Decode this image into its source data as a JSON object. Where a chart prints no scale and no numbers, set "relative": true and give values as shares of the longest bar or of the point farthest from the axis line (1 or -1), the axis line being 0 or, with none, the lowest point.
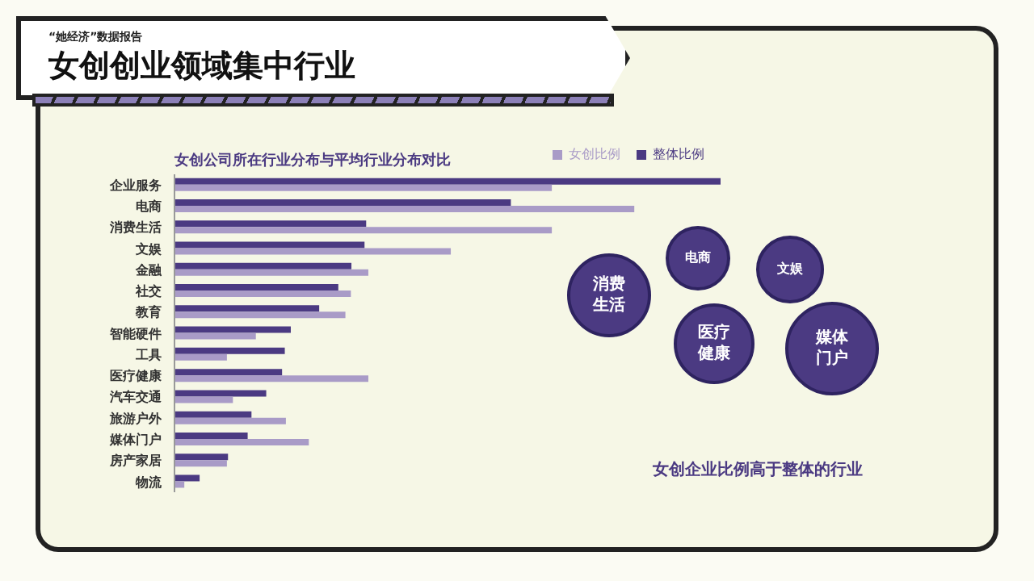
{
  "chart_data": {
    "type": "bar",
    "orientation": "horizontal",
    "relative": true,
    "title": "女创创业领域集中行业",
    "subtitle": "女创公司所在行业分布与平均行业分布对比",
    "categories": [
      "企业服务",
      "电商",
      "消费生活",
      "文娱",
      "金融",
      "社交",
      "教育",
      "智能硬件",
      "工具",
      "医疗健康",
      "汽车交通",
      "旅游户外",
      "媒体门户",
      "房产家居",
      "物流"
    ],
    "series": [
      {
        "name": "整体比例",
        "color": "#4b3a82",
        "values": [
          1,
          0.616,
          0.351,
          0.348,
          0.324,
          0.3,
          0.265,
          0.213,
          0.202,
          0.197,
          0.168,
          0.141,
          0.134,
          0.098,
          0.046
        ]
      },
      {
        "name": "女创比例",
        "color": "#a99bc7",
        "values": [
          0.691,
          0.842,
          0.691,
          0.506,
          0.355,
          0.323,
          0.313,
          0.149,
          0.096,
          0.355,
          0.107,
          0.204,
          0.246,
          0.096,
          0.018
        ]
      }
    ],
    "legend": "top right",
    "annotations": [
      "“她经济”数据报告",
      "消费生活",
      "电商",
      "文娱",
      "医疗健康",
      "媒体门户",
      "女创企业比例高于整体的行业"
    ]
  }
}
